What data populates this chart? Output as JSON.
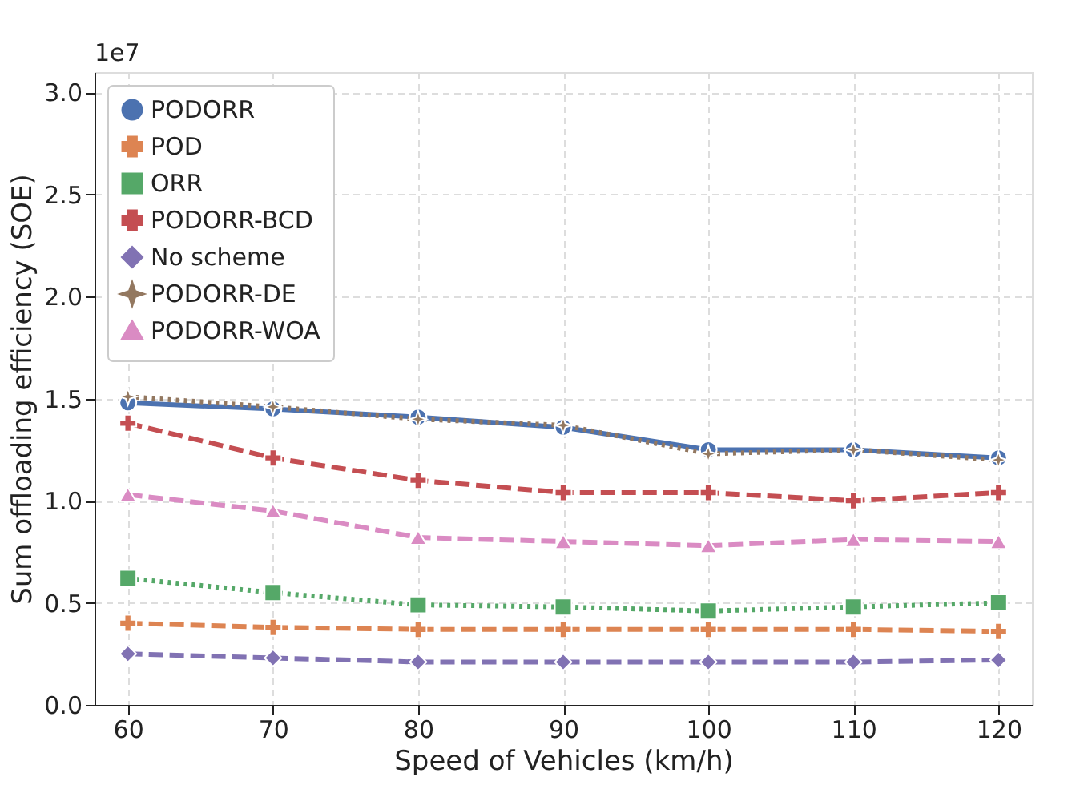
{
  "chart_data": {
    "type": "line",
    "xlabel": "Speed of Vehicles (km/h)",
    "ylabel": "Sum offloading efficiency (SOE)",
    "annotations": [
      "1e7"
    ],
    "x": [
      60,
      70,
      80,
      90,
      100,
      110,
      120
    ],
    "xlim": [
      57.7,
      122.3
    ],
    "xticks": [
      60,
      70,
      80,
      90,
      100,
      110,
      120
    ],
    "ylim": [
      0,
      3.1
    ],
    "yticks": [
      {
        "value": 0,
        "label": "0.0"
      },
      {
        "value": 0.5,
        "label": "0.5"
      },
      {
        "value": 1,
        "label": "1.0"
      },
      {
        "value": 1.5,
        "label": "1.5"
      },
      {
        "value": 2,
        "label": "2.0"
      },
      {
        "value": 2.5,
        "label": "2.5"
      },
      {
        "value": 3,
        "label": "3.0"
      }
    ],
    "grid": true,
    "legend": "top left",
    "series": [
      {
        "name": "PODORR",
        "color": "#4c72b0",
        "marker": "circle",
        "line_style": "solid",
        "values": [
          1.48,
          1.45,
          1.41,
          1.36,
          1.25,
          1.25,
          1.21
        ]
      },
      {
        "name": "POD",
        "color": "#dd8452",
        "marker": "cross",
        "line_style": "dashed",
        "values": [
          0.4,
          0.38,
          0.37,
          0.37,
          0.37,
          0.37,
          0.36
        ]
      },
      {
        "name": "ORR",
        "color": "#55a868",
        "marker": "square",
        "line_style": "dotted",
        "values": [
          0.62,
          0.55,
          0.49,
          0.48,
          0.46,
          0.48,
          0.5
        ]
      },
      {
        "name": "PODORR-BCD",
        "color": "#c44e52",
        "marker": "cross",
        "line_style": "dashed",
        "values": [
          1.38,
          1.21,
          1.1,
          1.04,
          1.04,
          1.0,
          1.04
        ]
      },
      {
        "name": "No scheme",
        "color": "#8172b3",
        "marker": "diamond",
        "line_style": "dashed",
        "values": [
          0.25,
          0.23,
          0.21,
          0.21,
          0.21,
          0.21,
          0.22
        ]
      },
      {
        "name": "PODORR-DE",
        "color": "#937860",
        "marker": "star",
        "line_style": "dotted",
        "values": [
          1.51,
          1.46,
          1.4,
          1.37,
          1.23,
          1.25,
          1.2
        ]
      },
      {
        "name": "PODORR-WOA",
        "color": "#da8bc3",
        "marker": "triangle",
        "line_style": "dashed",
        "values": [
          1.03,
          0.95,
          0.82,
          0.8,
          0.78,
          0.81,
          0.8
        ]
      }
    ]
  }
}
